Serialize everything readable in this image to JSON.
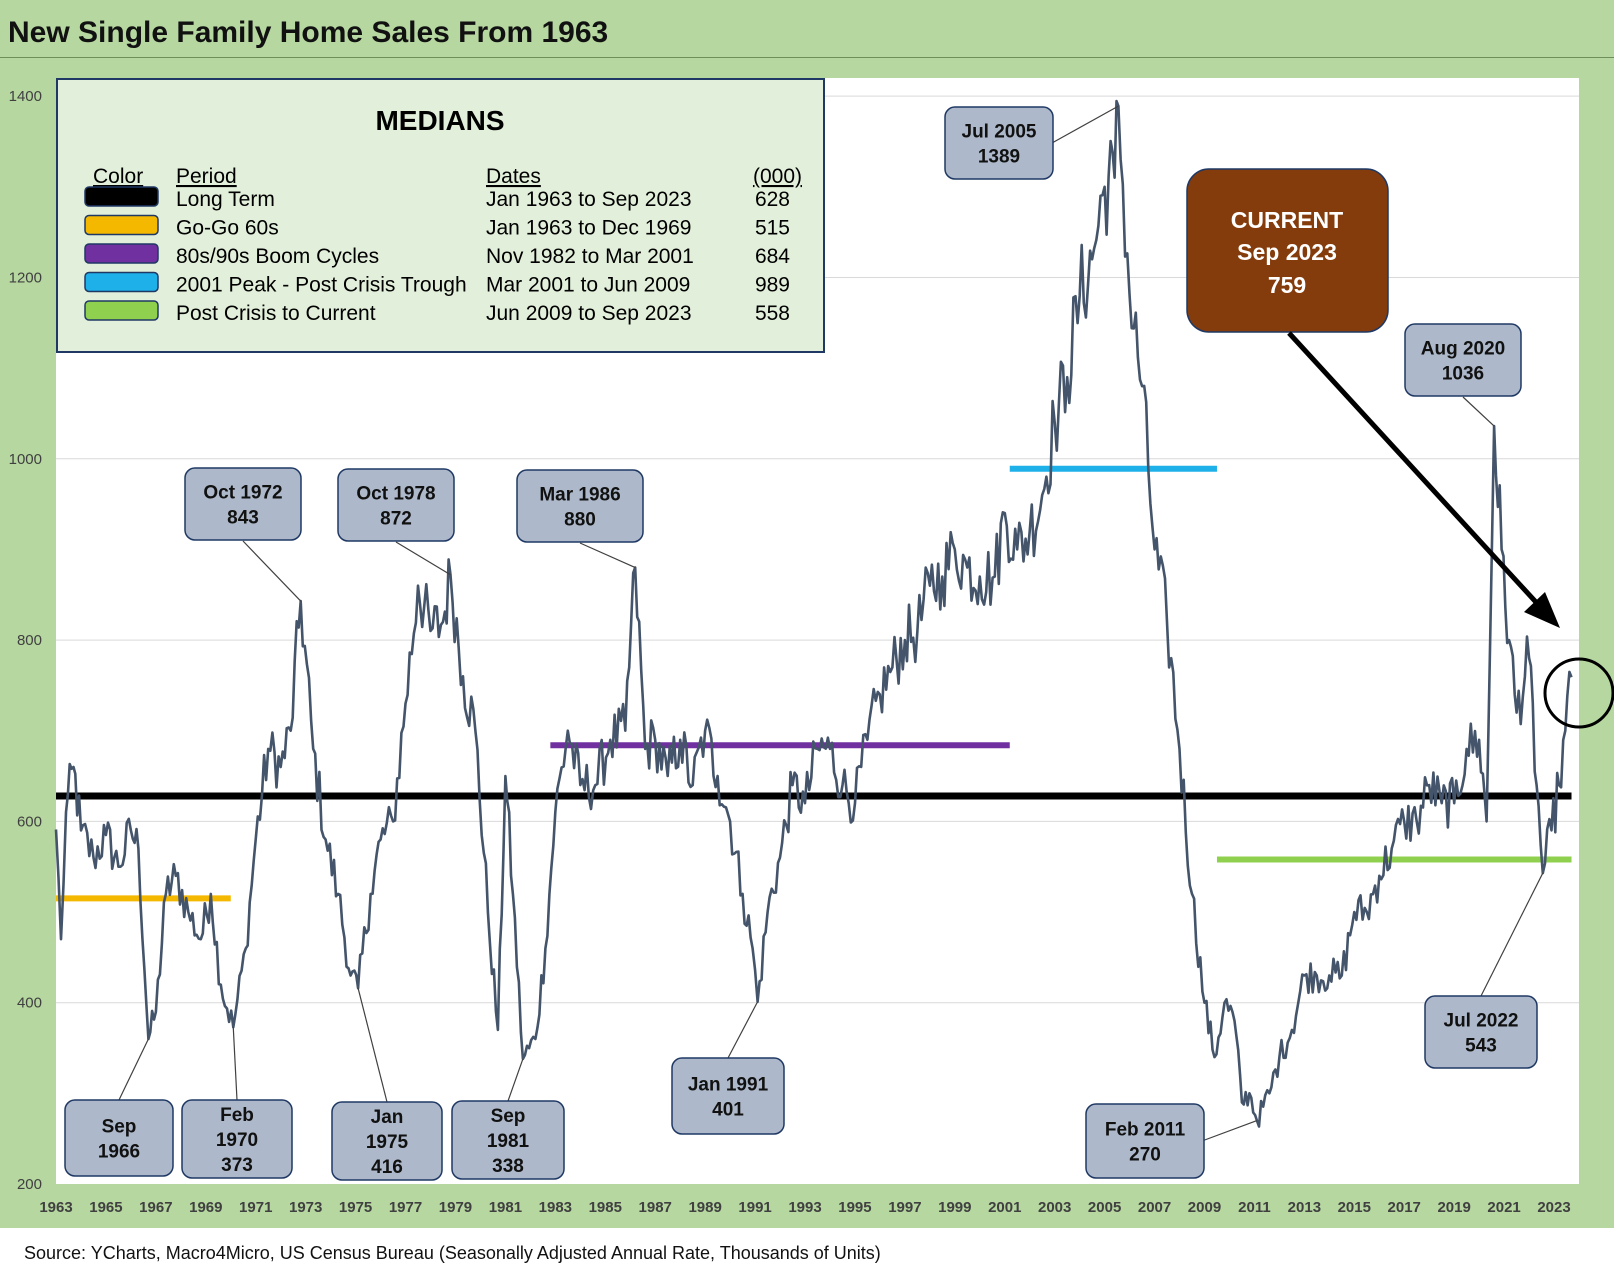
{
  "title": "New Single Family Home Sales From 1963",
  "source": "Source: YCharts, Macro4Micro, US Census Bureau (Seasonally Adjusted Annual Rate, Thousands of Units)",
  "legend": {
    "heading": "MEDIANS",
    "columns": [
      "Color",
      "Period",
      "Dates",
      "(000)"
    ],
    "rows": [
      {
        "color": "#000000",
        "period": "Long Term",
        "dates": "Jan 1963 to Sep 2023",
        "value": "628"
      },
      {
        "color": "#f5b800",
        "period": "Go-Go 60s",
        "dates": "Jan 1963 to Dec 1969",
        "value": "515"
      },
      {
        "color": "#7030a0",
        "period": "80s/90s Boom Cycles",
        "dates": "Nov 1982 to Mar 2001",
        "value": "684"
      },
      {
        "color": "#1eb0e8",
        "period": "2001 Peak - Post Crisis Trough",
        "dates": "Mar 2001 to Jun 2009",
        "value": "989"
      },
      {
        "color": "#8fd14f",
        "period": "Post Crisis to Current",
        "dates": "Jun 2009 to Sep 2023",
        "value": "558"
      }
    ]
  },
  "current_box": {
    "line1": "CURRENT",
    "line2": "Sep 2023",
    "line3": "759",
    "color": "#843c0c"
  },
  "chart_data": {
    "type": "line",
    "x_ticks": [
      "1963",
      "1965",
      "1967",
      "1969",
      "1971",
      "1973",
      "1975",
      "1977",
      "1979",
      "1981",
      "1983",
      "1985",
      "1987",
      "1989",
      "1991",
      "1993",
      "1995",
      "1997",
      "1999",
      "2001",
      "2003",
      "2005",
      "2007",
      "2009",
      "2011",
      "2013",
      "2015",
      "2017",
      "2019",
      "2021",
      "2023"
    ],
    "y_ticks": [
      "200",
      "400",
      "600",
      "800",
      "1000",
      "1200",
      "1400"
    ],
    "ylim": [
      200,
      1420
    ],
    "xlim": [
      1963.0,
      2024.0
    ],
    "grid": "horizontal",
    "line_color": "#44546a",
    "anchor_points": [
      [
        1963.0,
        591
      ],
      [
        1963.2,
        470
      ],
      [
        1963.4,
        610
      ],
      [
        1963.7,
        660
      ],
      [
        1964.0,
        590
      ],
      [
        1964.5,
        560
      ],
      [
        1965.0,
        585
      ],
      [
        1965.5,
        550
      ],
      [
        1966.0,
        590
      ],
      [
        1966.3,
        570
      ],
      [
        1966.7,
        360
      ],
      [
        1967.0,
        390
      ],
      [
        1967.4,
        520
      ],
      [
        1967.8,
        540
      ],
      [
        1968.3,
        500
      ],
      [
        1968.8,
        470
      ],
      [
        1969.2,
        520
      ],
      [
        1969.6,
        420
      ],
      [
        1970.1,
        373
      ],
      [
        1970.6,
        460
      ],
      [
        1971.0,
        580
      ],
      [
        1971.5,
        680
      ],
      [
        1972.0,
        660
      ],
      [
        1972.4,
        700
      ],
      [
        1972.8,
        843
      ],
      [
        1973.3,
        680
      ],
      [
        1973.8,
        580
      ],
      [
        1974.3,
        520
      ],
      [
        1974.8,
        430
      ],
      [
        1975.1,
        416
      ],
      [
        1975.6,
        520
      ],
      [
        1976.0,
        580
      ],
      [
        1976.5,
        600
      ],
      [
        1977.0,
        730
      ],
      [
        1977.5,
        860
      ],
      [
        1978.0,
        810
      ],
      [
        1978.5,
        820
      ],
      [
        1978.8,
        872
      ],
      [
        1979.3,
        760
      ],
      [
        1979.8,
        700
      ],
      [
        1980.3,
        500
      ],
      [
        1980.7,
        370
      ],
      [
        1981.0,
        650
      ],
      [
        1981.3,
        520
      ],
      [
        1981.7,
        338
      ],
      [
        1982.2,
        360
      ],
      [
        1982.6,
        460
      ],
      [
        1983.0,
        610
      ],
      [
        1983.5,
        700
      ],
      [
        1984.0,
        640
      ],
      [
        1984.6,
        640
      ],
      [
        1985.2,
        690
      ],
      [
        1985.8,
        700
      ],
      [
        1986.2,
        880
      ],
      [
        1986.6,
        680
      ],
      [
        1987.0,
        690
      ],
      [
        1987.5,
        650
      ],
      [
        1988.0,
        690
      ],
      [
        1988.5,
        640
      ],
      [
        1989.0,
        700
      ],
      [
        1989.5,
        650
      ],
      [
        1990.0,
        600
      ],
      [
        1990.5,
        520
      ],
      [
        1990.9,
        460
      ],
      [
        1991.1,
        401
      ],
      [
        1991.5,
        500
      ],
      [
        1992.0,
        560
      ],
      [
        1992.5,
        640
      ],
      [
        1993.0,
        620
      ],
      [
        1993.5,
        680
      ],
      [
        1994.0,
        680
      ],
      [
        1994.5,
        640
      ],
      [
        1995.0,
        620
      ],
      [
        1995.5,
        690
      ],
      [
        1996.0,
        740
      ],
      [
        1996.5,
        770
      ],
      [
        1997.0,
        800
      ],
      [
        1997.5,
        810
      ],
      [
        1998.0,
        860
      ],
      [
        1998.5,
        870
      ],
      [
        1999.0,
        900
      ],
      [
        1999.5,
        880
      ],
      [
        2000.0,
        870
      ],
      [
        2000.6,
        870
      ],
      [
        2001.0,
        940
      ],
      [
        2001.5,
        900
      ],
      [
        2002.0,
        920
      ],
      [
        2002.5,
        960
      ],
      [
        2003.0,
        1040
      ],
      [
        2003.5,
        1090
      ],
      [
        2004.0,
        1180
      ],
      [
        2004.5,
        1220
      ],
      [
        2005.0,
        1300
      ],
      [
        2005.4,
        1310
      ],
      [
        2005.55,
        1389
      ],
      [
        2006.0,
        1180
      ],
      [
        2006.5,
        1080
      ],
      [
        2007.0,
        900
      ],
      [
        2007.5,
        820
      ],
      [
        2008.0,
        680
      ],
      [
        2008.5,
        520
      ],
      [
        2009.0,
        400
      ],
      [
        2009.4,
        340
      ],
      [
        2009.8,
        400
      ],
      [
        2010.2,
        380
      ],
      [
        2010.5,
        290
      ],
      [
        2010.8,
        300
      ],
      [
        2011.1,
        270
      ],
      [
        2011.6,
        300
      ],
      [
        2012.0,
        340
      ],
      [
        2012.5,
        370
      ],
      [
        2013.0,
        430
      ],
      [
        2013.5,
        430
      ],
      [
        2014.0,
        430
      ],
      [
        2014.5,
        430
      ],
      [
        2015.0,
        500
      ],
      [
        2015.5,
        500
      ],
      [
        2016.0,
        540
      ],
      [
        2016.5,
        570
      ],
      [
        2017.0,
        600
      ],
      [
        2017.5,
        600
      ],
      [
        2018.0,
        640
      ],
      [
        2018.5,
        620
      ],
      [
        2019.0,
        620
      ],
      [
        2019.5,
        680
      ],
      [
        2020.0,
        690
      ],
      [
        2020.3,
        600
      ],
      [
        2020.6,
        1036
      ],
      [
        2020.9,
        900
      ],
      [
        2021.2,
        800
      ],
      [
        2021.5,
        720
      ],
      [
        2022.0,
        780
      ],
      [
        2022.3,
        640
      ],
      [
        2022.55,
        543
      ],
      [
        2022.9,
        590
      ],
      [
        2023.2,
        640
      ],
      [
        2023.45,
        700
      ],
      [
        2023.7,
        759
      ]
    ],
    "median_lines": [
      {
        "label": "Long Term",
        "y": 628,
        "x0": 1963.0,
        "x1": 2023.7,
        "color": "#000000"
      },
      {
        "label": "Go-Go 60s",
        "y": 515,
        "x0": 1963.0,
        "x1": 1970.0,
        "color": "#f5b800"
      },
      {
        "label": "80s/90s Boom Cycles",
        "y": 684,
        "x0": 1982.8,
        "x1": 2001.2,
        "color": "#7030a0"
      },
      {
        "label": "2001 Peak - Post Crisis Trough",
        "y": 989,
        "x0": 2001.2,
        "x1": 2009.5,
        "color": "#1eb0e8"
      },
      {
        "label": "Post Crisis to Current",
        "y": 558,
        "x0": 2009.5,
        "x1": 2023.7,
        "color": "#8fd14f"
      }
    ],
    "annotations": [
      {
        "lines": [
          "Oct 1972",
          "843"
        ],
        "x": 1972.8,
        "y": 843
      },
      {
        "lines": [
          "Oct 1978",
          "872"
        ],
        "x": 1978.8,
        "y": 872
      },
      {
        "lines": [
          "Mar 1986",
          "880"
        ],
        "x": 1986.2,
        "y": 880
      },
      {
        "lines": [
          "Jul 2005",
          "1389"
        ],
        "x": 2005.55,
        "y": 1389
      },
      {
        "lines": [
          "Aug 2020",
          "1036"
        ],
        "x": 2020.6,
        "y": 1036
      },
      {
        "lines": [
          "Sep",
          "1966"
        ],
        "x": 1966.7,
        "y": 360
      },
      {
        "lines": [
          "Feb",
          "1970",
          "373"
        ],
        "x": 1970.1,
        "y": 373
      },
      {
        "lines": [
          "Jan",
          "1975",
          "416"
        ],
        "x": 1975.1,
        "y": 416
      },
      {
        "lines": [
          "Sep",
          "1981",
          "338"
        ],
        "x": 1981.7,
        "y": 338
      },
      {
        "lines": [
          "Jan 1991",
          "401"
        ],
        "x": 1991.1,
        "y": 401
      },
      {
        "lines": [
          "Feb 2011",
          "270"
        ],
        "x": 2011.1,
        "y": 270
      },
      {
        "lines": [
          "Jul 2022",
          "543"
        ],
        "x": 2022.55,
        "y": 543
      }
    ]
  }
}
